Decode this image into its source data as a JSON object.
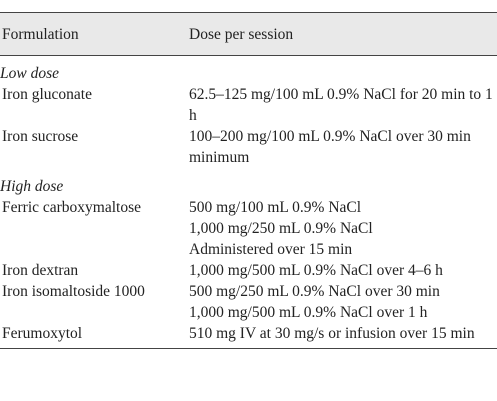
{
  "table": {
    "headers": [
      "Formulation",
      "Dose per session"
    ],
    "sections": [
      {
        "title": "Low dose",
        "rows": [
          {
            "formulation": "Iron gluconate",
            "doses": [
              "62.5–125 mg/100 mL 0.9% NaCl for 20 min to 1 h"
            ]
          },
          {
            "formulation": "Iron sucrose",
            "doses": [
              "100–200 mg/100 mL 0.9% NaCl over 30 min minimum"
            ]
          }
        ]
      },
      {
        "title": "High dose",
        "rows": [
          {
            "formulation": "Ferric carboxymaltose",
            "doses": [
              "500 mg/100 mL 0.9% NaCl",
              "1,000 mg/250 mL 0.9% NaCl",
              "Administered over 15 min"
            ]
          },
          {
            "formulation": "Iron dextran",
            "doses": [
              "1,000 mg/500 mL 0.9% NaCl over 4–6 h"
            ]
          },
          {
            "formulation": "Iron isomaltoside 1000",
            "doses": [
              "500 mg/250 mL 0.9% NaCl over 30 min",
              "1,000 mg/500 mL 0.9% NaCl over 1 h"
            ]
          },
          {
            "formulation": "Ferumoxytol",
            "doses": [
              "510 mg IV at 30 mg/s or infusion over 15 min"
            ]
          }
        ]
      }
    ]
  }
}
